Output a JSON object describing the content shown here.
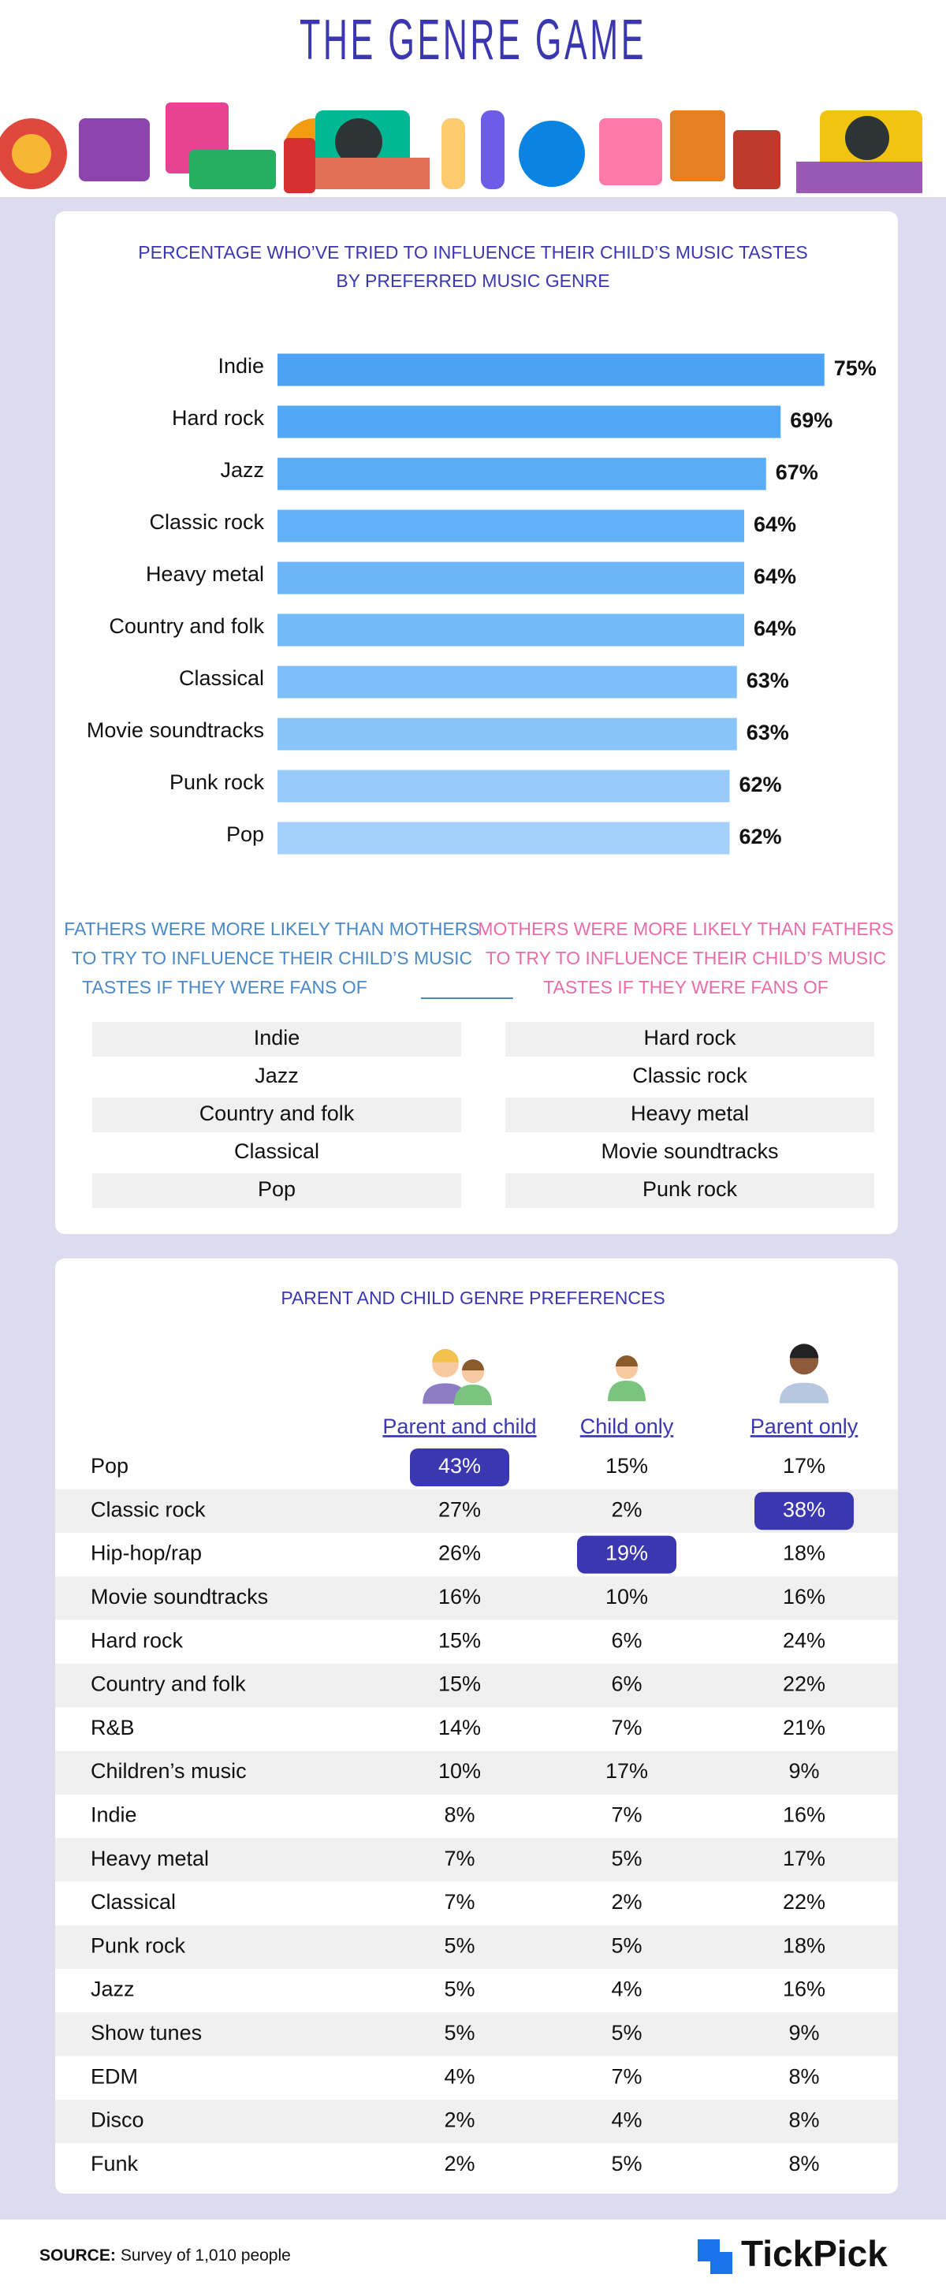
{
  "title": "THE GENRE GAME",
  "chart_data": {
    "type": "bar",
    "orientation": "horizontal",
    "title_lines": [
      "PERCENTAGE WHO’VE TRIED TO INFLUENCE THEIR CHILD’S MUSIC TASTES",
      "BY PREFERRED MUSIC GENRE"
    ],
    "categories": [
      "Indie",
      "Hard rock",
      "Jazz",
      "Classic rock",
      "Heavy metal",
      "Country and folk",
      "Classical",
      "Movie soundtracks",
      "Punk rock",
      "Pop"
    ],
    "values": [
      75,
      69,
      67,
      64,
      64,
      64,
      63,
      63,
      62,
      62
    ],
    "value_labels": [
      "75%",
      "69%",
      "67%",
      "64%",
      "64%",
      "64%",
      "63%",
      "63%",
      "62%",
      "62%"
    ],
    "colors": [
      "#4aa3f4",
      "#52a8f5",
      "#5aacf6",
      "#63b1f7",
      "#6cb5f7",
      "#75baf8",
      "#7fbff9",
      "#8ac5fa",
      "#96cbfa",
      "#a3d1fb"
    ]
  },
  "fathers": {
    "color": "#4a88c7",
    "heading_lines": [
      "FATHERS WERE MORE LIKELY THAN MOTHERS",
      "TO TRY TO INFLUENCE THEIR CHILD’S MUSIC",
      "TASTES IF THEY WERE FANS OF"
    ],
    "items": [
      "Indie",
      "Jazz",
      "Country and folk",
      "Classical",
      "Pop"
    ]
  },
  "mothers": {
    "color": "#e96ca9",
    "heading_lines": [
      "MOTHERS WERE MORE LIKELY THAN FATHERS",
      "TO TRY TO INFLUENCE THEIR CHILD’S MUSIC",
      "TASTES IF THEY WERE FANS OF"
    ],
    "items": [
      "Hard rock",
      "Classic rock",
      "Heavy metal",
      "Movie soundtracks",
      "Punk rock"
    ]
  },
  "preferences": {
    "title": "PARENT AND CHILD GENRE PREFERENCES",
    "columns": [
      "Parent and child",
      "Child only",
      "Parent only"
    ],
    "rows": [
      {
        "genre": "Pop",
        "cells": [
          "43%",
          "15%",
          "17%"
        ]
      },
      {
        "genre": "Classic rock",
        "cells": [
          "27%",
          "2%",
          "38%"
        ]
      },
      {
        "genre": "Hip-hop/rap",
        "cells": [
          "26%",
          "19%",
          "18%"
        ]
      },
      {
        "genre": "Movie soundtracks",
        "cells": [
          "16%",
          "10%",
          "16%"
        ]
      },
      {
        "genre": "Hard rock",
        "cells": [
          "15%",
          "6%",
          "24%"
        ]
      },
      {
        "genre": "Country and folk",
        "cells": [
          "15%",
          "6%",
          "22%"
        ]
      },
      {
        "genre": "R&B",
        "cells": [
          "14%",
          "7%",
          "21%"
        ]
      },
      {
        "genre": "Children’s music",
        "cells": [
          "10%",
          "17%",
          "9%"
        ]
      },
      {
        "genre": "Indie",
        "cells": [
          "8%",
          "7%",
          "16%"
        ]
      },
      {
        "genre": "Heavy metal",
        "cells": [
          "7%",
          "5%",
          "17%"
        ]
      },
      {
        "genre": "Classical",
        "cells": [
          "7%",
          "2%",
          "22%"
        ]
      },
      {
        "genre": "Punk rock",
        "cells": [
          "5%",
          "5%",
          "18%"
        ]
      },
      {
        "genre": "Jazz",
        "cells": [
          "5%",
          "4%",
          "16%"
        ]
      },
      {
        "genre": "Show tunes",
        "cells": [
          "5%",
          "5%",
          "9%"
        ]
      },
      {
        "genre": "EDM",
        "cells": [
          "4%",
          "7%",
          "8%"
        ]
      },
      {
        "genre": "Disco",
        "cells": [
          "2%",
          "4%",
          "8%"
        ]
      },
      {
        "genre": "Funk",
        "cells": [
          "2%",
          "5%",
          "8%"
        ]
      }
    ],
    "highlights": [
      [
        0,
        0
      ],
      [
        1,
        2
      ],
      [
        2,
        1
      ]
    ]
  },
  "source": {
    "label": "SOURCE:",
    "text": "Survey of 1,010 people"
  },
  "brand": "TickPick"
}
